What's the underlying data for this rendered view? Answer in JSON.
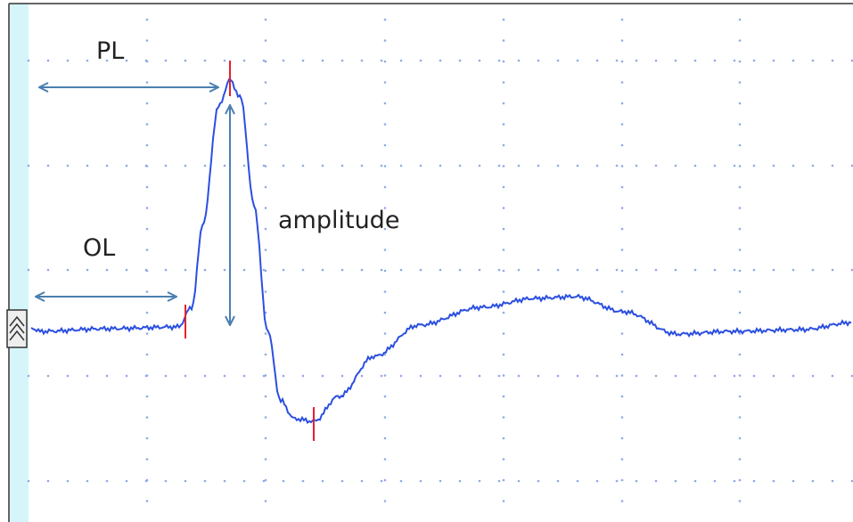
{
  "labels": {
    "pl": "PL",
    "ol": "OL",
    "amplitude": "amplitude"
  }
}
